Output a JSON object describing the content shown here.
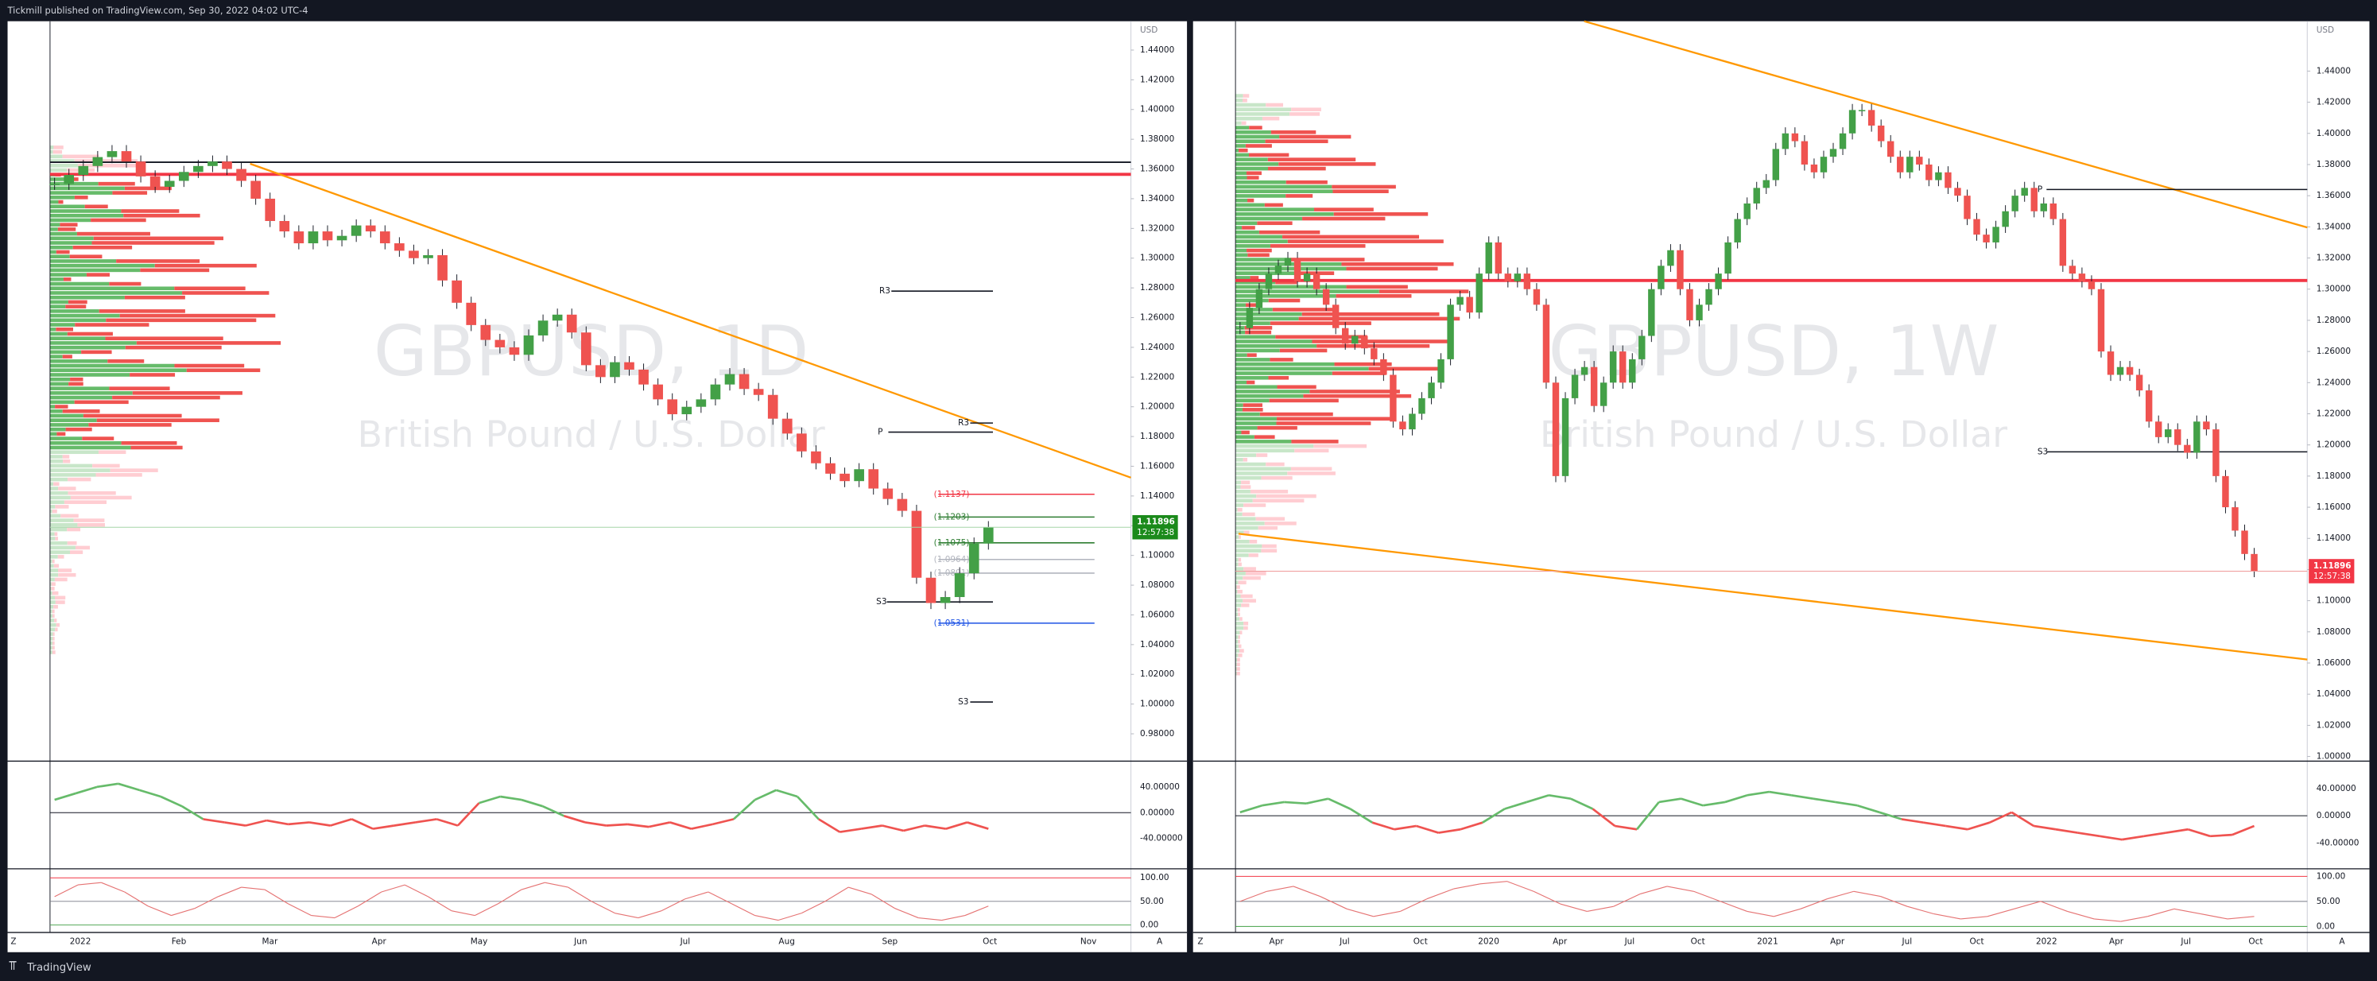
{
  "header": {
    "publisher": "Tickmill published on TradingView.com, Sep 30, 2022 04:02 UTC-4"
  },
  "footer": {
    "brand": "TradingView"
  },
  "panels": [
    {
      "symbol": "GBPUSD, 1D",
      "description": "British Pound / U.S. Dollar",
      "currency": "USD",
      "last_price": 1.11896,
      "countdown": "12:57:38",
      "ylim": [
        0.9616,
        1.4594
      ],
      "yticks": [
        {
          "value": 1.44,
          "label": "1.44000"
        },
        {
          "value": 1.42,
          "label": "1.42000"
        },
        {
          "value": 1.4,
          "label": "1.40000"
        },
        {
          "value": 1.38,
          "label": "1.38000"
        },
        {
          "value": 1.36,
          "label": "1.36000"
        },
        {
          "value": 1.34,
          "label": "1.34000"
        },
        {
          "value": 1.32,
          "label": "1.32000"
        },
        {
          "value": 1.3,
          "label": "1.30000"
        },
        {
          "value": 1.28,
          "label": "1.28000"
        },
        {
          "value": 1.26,
          "label": "1.26000"
        },
        {
          "value": 1.24,
          "label": "1.24000"
        },
        {
          "value": 1.22,
          "label": "1.22000"
        },
        {
          "value": 1.2,
          "label": "1.20000"
        },
        {
          "value": 1.18,
          "label": "1.18000"
        },
        {
          "value": 1.16,
          "label": "1.16000"
        },
        {
          "value": 1.14,
          "label": "1.14000"
        },
        {
          "value": 1.12,
          "label": "1.12000"
        },
        {
          "value": 1.1,
          "label": "1.10000"
        },
        {
          "value": 1.08,
          "label": "1.08000"
        },
        {
          "value": 1.06,
          "label": "1.06000"
        },
        {
          "value": 1.04,
          "label": "1.04000"
        },
        {
          "value": 1.02,
          "label": "1.02000"
        },
        {
          "value": 1.0,
          "label": "1.00000"
        },
        {
          "value": 0.98,
          "label": "0.98000"
        }
      ],
      "x_labels": [
        "2022",
        "Feb",
        "Mar",
        "Apr",
        "May",
        "Jun",
        "Jul",
        "Aug",
        "Sep",
        "Oct",
        "Nov"
      ],
      "closes": [
        1.35,
        1.356,
        1.362,
        1.368,
        1.372,
        1.365,
        1.355,
        1.348,
        1.352,
        1.358,
        1.362,
        1.365,
        1.36,
        1.352,
        1.34,
        1.325,
        1.318,
        1.31,
        1.318,
        1.312,
        1.315,
        1.322,
        1.318,
        1.31,
        1.305,
        1.3,
        1.302,
        1.285,
        1.27,
        1.255,
        1.245,
        1.24,
        1.235,
        1.248,
        1.258,
        1.262,
        1.25,
        1.228,
        1.22,
        1.23,
        1.225,
        1.215,
        1.205,
        1.195,
        1.2,
        1.205,
        1.215,
        1.222,
        1.212,
        1.208,
        1.192,
        1.182,
        1.17,
        1.162,
        1.155,
        1.15,
        1.158,
        1.145,
        1.138,
        1.13,
        1.085,
        1.068,
        1.072,
        1.088,
        1.108,
        1.119
      ],
      "chart_labels": [
        "R3",
        "R3",
        "P",
        "S3",
        "S3",
        "(1.1137)",
        "(1.1203)",
        "(1.1075)",
        "(1.0964)",
        "(1.0891)",
        "(1.0531)"
      ],
      "osc": {
        "ylim": [
          -84.7,
          77.6
        ],
        "yticks": [
          {
            "value": 40,
            "label": "40.00000"
          },
          {
            "value": 0,
            "label": "0.00000"
          },
          {
            "value": -40,
            "label": "-40.00000"
          }
        ],
        "values": [
          20,
          30,
          40,
          45,
          35,
          25,
          10,
          -10,
          -15,
          -20,
          -12,
          -18,
          -15,
          -20,
          -10,
          -25,
          -20,
          -15,
          -10,
          -20,
          15,
          25,
          20,
          10,
          -5,
          -15,
          -20,
          -18,
          -22,
          -15,
          -25,
          -18,
          -10,
          20,
          35,
          25,
          -10,
          -30,
          -25,
          -20,
          -28,
          -20,
          -25,
          -15,
          -25
        ]
      },
      "stoch": {
        "ylim": [
          -12.9,
          116
        ],
        "yticks": [
          {
            "value": 100,
            "label": "100.00"
          },
          {
            "value": 50,
            "label": "50.00"
          },
          {
            "value": 0,
            "label": "0.00"
          }
        ],
        "values": [
          60,
          85,
          90,
          70,
          40,
          20,
          35,
          60,
          80,
          75,
          45,
          20,
          15,
          40,
          70,
          85,
          60,
          30,
          20,
          45,
          75,
          90,
          80,
          50,
          25,
          15,
          30,
          55,
          70,
          45,
          20,
          10,
          25,
          50,
          80,
          65,
          35,
          15,
          10,
          20,
          40
        ]
      }
    },
    {
      "symbol": "GBPUSD, 1W",
      "description": "British Pound / U.S. Dollar",
      "currency": "USD",
      "last_price": 1.11896,
      "countdown": "12:57:38",
      "ylim": [
        0.997,
        1.472
      ],
      "yticks": [
        {
          "value": 1.44,
          "label": "1.44000"
        },
        {
          "value": 1.42,
          "label": "1.42000"
        },
        {
          "value": 1.4,
          "label": "1.40000"
        },
        {
          "value": 1.38,
          "label": "1.38000"
        },
        {
          "value": 1.36,
          "label": "1.36000"
        },
        {
          "value": 1.34,
          "label": "1.34000"
        },
        {
          "value": 1.32,
          "label": "1.32000"
        },
        {
          "value": 1.3,
          "label": "1.30000"
        },
        {
          "value": 1.28,
          "label": "1.28000"
        },
        {
          "value": 1.26,
          "label": "1.26000"
        },
        {
          "value": 1.24,
          "label": "1.24000"
        },
        {
          "value": 1.22,
          "label": "1.22000"
        },
        {
          "value": 1.2,
          "label": "1.20000"
        },
        {
          "value": 1.18,
          "label": "1.18000"
        },
        {
          "value": 1.16,
          "label": "1.16000"
        },
        {
          "value": 1.14,
          "label": "1.14000"
        },
        {
          "value": 1.12,
          "label": "1.12000"
        },
        {
          "value": 1.1,
          "label": "1.10000"
        },
        {
          "value": 1.08,
          "label": "1.08000"
        },
        {
          "value": 1.06,
          "label": "1.06000"
        },
        {
          "value": 1.04,
          "label": "1.04000"
        },
        {
          "value": 1.02,
          "label": "1.02000"
        },
        {
          "value": 1.0,
          "label": "1.00000"
        }
      ],
      "x_labels": [
        "Apr",
        "Jul",
        "Oct",
        "2020",
        "Apr",
        "Jul",
        "Oct",
        "2021",
        "Apr",
        "Jul",
        "Oct",
        "2022",
        "Apr",
        "Jul",
        "Oct"
      ],
      "closes": [
        1.275,
        1.288,
        1.3,
        1.31,
        1.315,
        1.32,
        1.305,
        1.31,
        1.3,
        1.29,
        1.275,
        1.265,
        1.27,
        1.262,
        1.255,
        1.245,
        1.215,
        1.21,
        1.22,
        1.23,
        1.24,
        1.255,
        1.29,
        1.295,
        1.285,
        1.31,
        1.33,
        1.31,
        1.305,
        1.31,
        1.3,
        1.29,
        1.24,
        1.18,
        1.23,
        1.245,
        1.25,
        1.225,
        1.24,
        1.26,
        1.24,
        1.255,
        1.27,
        1.3,
        1.315,
        1.325,
        1.3,
        1.28,
        1.29,
        1.3,
        1.31,
        1.33,
        1.345,
        1.355,
        1.365,
        1.37,
        1.39,
        1.4,
        1.395,
        1.38,
        1.375,
        1.385,
        1.39,
        1.4,
        1.415,
        1.415,
        1.405,
        1.395,
        1.385,
        1.375,
        1.385,
        1.38,
        1.37,
        1.375,
        1.365,
        1.36,
        1.345,
        1.335,
        1.33,
        1.34,
        1.35,
        1.36,
        1.365,
        1.35,
        1.355,
        1.345,
        1.315,
        1.31,
        1.305,
        1.3,
        1.26,
        1.245,
        1.25,
        1.245,
        1.235,
        1.215,
        1.205,
        1.21,
        1.2,
        1.195,
        1.215,
        1.21,
        1.18,
        1.16,
        1.145,
        1.13,
        1.119
      ],
      "chart_labels": [
        "P",
        "S3"
      ],
      "osc": {
        "ylim": [
          -75.6,
          77.8
        ],
        "yticks": [
          {
            "value": 40,
            "label": "40.00000"
          },
          {
            "value": 0,
            "label": "0.00000"
          },
          {
            "value": -40,
            "label": "-40.00000"
          }
        ],
        "values": [
          5,
          15,
          20,
          18,
          25,
          10,
          -10,
          -20,
          -15,
          -25,
          -20,
          -10,
          10,
          20,
          30,
          25,
          10,
          -15,
          -20,
          20,
          25,
          15,
          20,
          30,
          35,
          30,
          25,
          20,
          15,
          5,
          -5,
          -10,
          -15,
          -20,
          -10,
          5,
          -15,
          -20,
          -25,
          -30,
          -35,
          -30,
          -25,
          -20,
          -30,
          -28,
          -15
        ]
      },
      "stoch": {
        "ylim": [
          -9,
          112
        ],
        "yticks": [
          {
            "value": 100,
            "label": "100.00"
          },
          {
            "value": 50,
            "label": "50.00"
          },
          {
            "value": 0,
            "label": "0.00"
          }
        ],
        "values": [
          50,
          70,
          80,
          60,
          35,
          20,
          30,
          55,
          75,
          85,
          90,
          70,
          45,
          30,
          40,
          65,
          80,
          70,
          50,
          30,
          20,
          35,
          55,
          70,
          60,
          40,
          25,
          15,
          20,
          35,
          50,
          30,
          15,
          10,
          20,
          35,
          25,
          15,
          20
        ]
      }
    }
  ],
  "toolbar": {
    "left": "Z",
    "right": "A"
  }
}
